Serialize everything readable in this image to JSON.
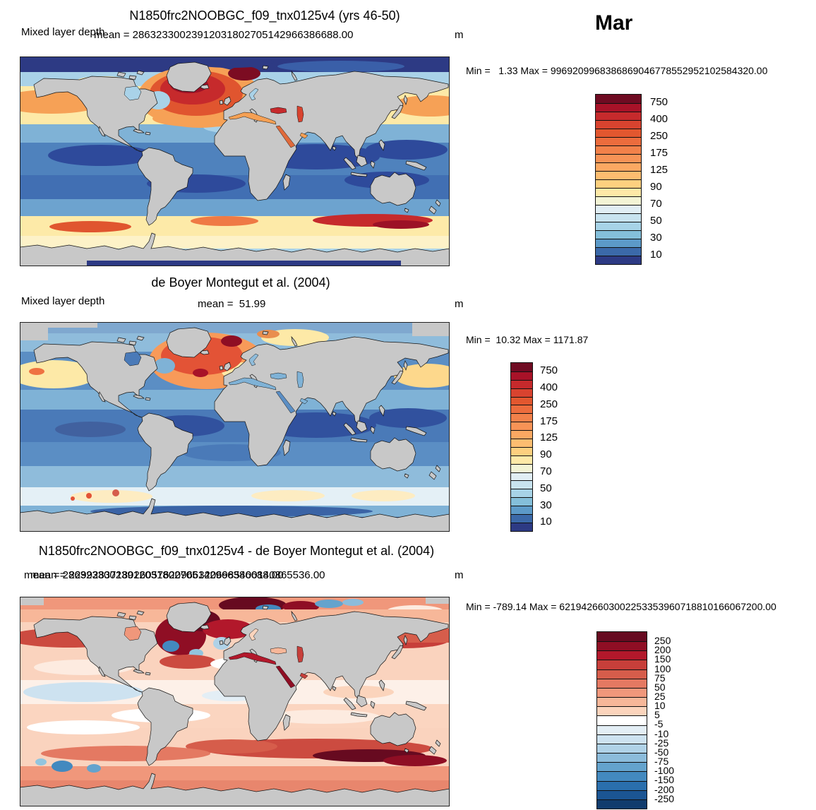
{
  "page": {
    "month_title": "Mar"
  },
  "panels": [
    {
      "id": "model",
      "title": "N1850frc2NOOBGC_f09_tnx0125v4 (yrs 46-50)",
      "field_label": "Mixed layer depth",
      "mean_label": "mean = 28632330023912031802705142966386688.00",
      "units": "m",
      "minmax_label": "Min =   1.33 Max = 9969209968386869046778552952102584320.00",
      "colorbar": {
        "ticks": [
          "750",
          "400",
          "250",
          "175",
          "125",
          "90",
          "70",
          "50",
          "30",
          "10"
        ],
        "tick_boundaries": [
          1,
          3,
          5,
          7,
          9,
          11,
          13,
          15,
          17,
          19
        ],
        "colors": [
          "#6f0b22",
          "#a81228",
          "#c62a2c",
          "#d8432f",
          "#e2572f",
          "#ec6c3d",
          "#f2814a",
          "#f79356",
          "#fba862",
          "#fdbd70",
          "#fdd07f",
          "#fee9a7",
          "#f3f4d5",
          "#e1eef4",
          "#c8e3ef",
          "#a7d3e7",
          "#84bfda",
          "#5c9ac8",
          "#3b69a9",
          "#2d3a84"
        ]
      }
    },
    {
      "id": "obs",
      "title": "de Boyer Montegut et al. (2004)",
      "field_label": "Mixed layer depth",
      "mean_label": "mean =  51.99",
      "units": "m",
      "minmax_label": "Min =  10.32 Max = 1171.87",
      "colorbar": {
        "ticks": [
          "750",
          "400",
          "250",
          "175",
          "125",
          "90",
          "70",
          "50",
          "30",
          "10"
        ],
        "tick_boundaries": [
          1,
          3,
          5,
          7,
          9,
          11,
          13,
          15,
          17,
          19
        ],
        "colors": [
          "#6f0b22",
          "#a81228",
          "#c62a2c",
          "#d8432f",
          "#e2572f",
          "#ec6c3d",
          "#f2814a",
          "#f79356",
          "#fba862",
          "#fdbd70",
          "#fdd07f",
          "#fee9a7",
          "#f3f4d5",
          "#e1eef4",
          "#c8e3ef",
          "#a7d3e7",
          "#84bfda",
          "#5c9ac8",
          "#3b69a9",
          "#2d3a84"
        ]
      }
    },
    {
      "id": "diff",
      "title": "N1850frc2NOOBGC_f09_tnx0125v4 - de Boyer Montegut et al. (2004)",
      "mean_label": "mean = 28632330023912031802705142966386688.00",
      "mean_label_2": "mean = 22992837180260576209663206985400140865536.00",
      "units": "m",
      "minmax_label": "Min = -789.14 Max = 6219426603002253353960718810166067200.00",
      "colorbar": {
        "ticks": [
          "250",
          "200",
          "150",
          "100",
          "75",
          "50",
          "25",
          "10",
          "5",
          "-5",
          "-10",
          "-25",
          "-50",
          "-75",
          "-100",
          "-150",
          "-200",
          "-250"
        ],
        "tick_boundaries": [
          1,
          2,
          3,
          4,
          5,
          6,
          7,
          8,
          9,
          10,
          11,
          12,
          13,
          14,
          15,
          16,
          17,
          18
        ],
        "colors": [
          "#670a20",
          "#8f0e24",
          "#b2182b",
          "#c73f3a",
          "#d65d4b",
          "#e47962",
          "#f0977b",
          "#f7b799",
          "#fbd4bc",
          "#ffffff",
          "#e3eef5",
          "#cde2f0",
          "#b0d2e7",
          "#8cbcdb",
          "#64a3cd",
          "#4389bf",
          "#2a6fad",
          "#1b5593",
          "#113c6d"
        ]
      }
    }
  ],
  "chart_data": [
    {
      "type": "heatmap",
      "title": "N1850frc2NOOBGC_f09_tnx0125v4 (yrs 46-50)",
      "variable": "Mixed layer depth",
      "units": "m",
      "month": "Mar",
      "projection": "global lat-lon map, gray continents",
      "levels": [
        10,
        30,
        50,
        70,
        90,
        125,
        175,
        250,
        400,
        750
      ],
      "palette_top_to_bottom": [
        "#6f0b22",
        "#a81228",
        "#c62a2c",
        "#d8432f",
        "#e2572f",
        "#ec6c3d",
        "#f2814a",
        "#f79356",
        "#fba862",
        "#fdbd70",
        "#fdd07f",
        "#fee9a7",
        "#f3f4d5",
        "#e1eef4",
        "#c8e3ef",
        "#a7d3e7",
        "#84bfda",
        "#5c9ac8",
        "#3b69a9",
        "#2d3a84"
      ],
      "stats": {
        "min": 1.33,
        "max": "9969209968386869046778552952102584320.00",
        "mean": "28632330023912031802705142966386688.00"
      },
      "pattern": "Deep MLD (dark red >400 m) in subpolar North Atlantic and Nordic Seas; shallow (blue <50 m) tropics and Arctic; yellow 90-175 m subtropical bands and Southern Ocean band with red streak south of Australia/New Zealand"
    },
    {
      "type": "heatmap",
      "title": "de Boyer Montegut et al. (2004)",
      "variable": "Mixed layer depth",
      "units": "m",
      "month": "Mar",
      "projection": "global lat-lon map, gray continents",
      "levels": [
        10,
        30,
        50,
        70,
        90,
        125,
        175,
        250,
        400,
        750
      ],
      "palette_top_to_bottom": [
        "#6f0b22",
        "#a81228",
        "#c62a2c",
        "#d8432f",
        "#e2572f",
        "#ec6c3d",
        "#f2814a",
        "#f79356",
        "#fba862",
        "#fdbd70",
        "#fdd07f",
        "#fee9a7",
        "#f3f4d5",
        "#e1eef4",
        "#c8e3ef",
        "#a7d3e7",
        "#84bfda",
        "#5c9ac8",
        "#3b69a9",
        "#2d3a84"
      ],
      "stats": {
        "min": 10.32,
        "max": 1171.87,
        "mean": 51.99
      },
      "pattern": "Observed climatology: deep MLD (orange/red) confined to subpolar North Atlantic and Nordic Seas; pale yellow North Pacific patches; mostly blue elsewhere; very pale band ~45-55S with isolated orange spots"
    },
    {
      "type": "heatmap",
      "title": "N1850frc2NOOBGC_f09_tnx0125v4 - de Boyer Montegut et al. (2004)",
      "variable": "Mixed layer depth difference",
      "units": "m",
      "month": "Mar",
      "projection": "global lat-lon map, gray continents",
      "levels": [
        -250,
        -200,
        -150,
        -100,
        -75,
        -50,
        -25,
        -10,
        -5,
        5,
        10,
        25,
        50,
        75,
        100,
        150,
        200,
        250
      ],
      "palette_top_to_bottom": [
        "#670a20",
        "#8f0e24",
        "#b2182b",
        "#c73f3a",
        "#d65d4b",
        "#e47962",
        "#f0977b",
        "#f7b799",
        "#fbd4bc",
        "#ffffff",
        "#e3eef5",
        "#cde2f0",
        "#b0d2e7",
        "#8cbcdb",
        "#64a3cd",
        "#4389bf",
        "#2a6fad",
        "#1b5593",
        "#113c6d"
      ],
      "stats": {
        "min": -789.14,
        "max": "6219426603002253353960718810166067200.00",
        "mean": "22992837180260576209663206985400140865536.00"
      },
      "pattern": "Model minus observations: broadly positive (light red) bias; dark maroon >250 m in Labrador Sea, Nordic/Barents Seas and along the Antarctic Circumpolar Current south of Australia/New Zealand; scattered blue negative patches near Greenland and in South Pacific"
    }
  ]
}
